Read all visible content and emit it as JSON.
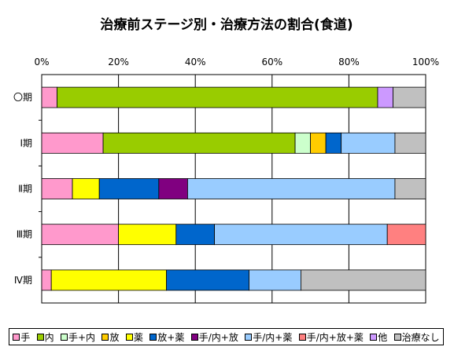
{
  "chart_data": {
    "type": "bar",
    "orientation": "horizontal",
    "stacked_percent": true,
    "title": "治療前ステージ別・治療方法の割合(食道)",
    "xlim": [
      0,
      100
    ],
    "x_ticks": [
      "0%",
      "20%",
      "40%",
      "60%",
      "80%",
      "100%"
    ],
    "grid": true,
    "legend_position": "bottom",
    "categories": [
      "〇期",
      "Ⅰ期",
      "Ⅱ期",
      "Ⅲ期",
      "Ⅳ期"
    ],
    "series": [
      {
        "name": "手",
        "color": "#FF99CC",
        "values": [
          4,
          16,
          8,
          20,
          2.5
        ]
      },
      {
        "name": "内",
        "color": "#99CC00",
        "values": [
          83.5,
          50,
          0,
          0,
          0
        ]
      },
      {
        "name": "手+内",
        "color": "#CCFFCC",
        "values": [
          0,
          4,
          0,
          0,
          0
        ]
      },
      {
        "name": "放",
        "color": "#FFCC00",
        "values": [
          0,
          4,
          0,
          0,
          0
        ]
      },
      {
        "name": "薬",
        "color": "#FFFF00",
        "values": [
          0,
          0,
          7,
          15,
          30
        ]
      },
      {
        "name": "放+薬",
        "color": "#0066CC",
        "values": [
          0,
          4,
          15.5,
          10,
          21.5
        ]
      },
      {
        "name": "手/内+放",
        "color": "#800080",
        "values": [
          0,
          0,
          7.5,
          0,
          0
        ]
      },
      {
        "name": "手/内+薬",
        "color": "#99CCFF",
        "values": [
          0,
          14,
          54,
          45,
          13.5
        ]
      },
      {
        "name": "手/内+放+薬",
        "color": "#FF8080",
        "values": [
          0,
          0,
          0,
          10,
          0
        ]
      },
      {
        "name": "他",
        "color": "#CC99FF",
        "values": [
          4,
          0,
          0,
          0,
          0
        ]
      },
      {
        "name": "治療なし",
        "color": "#C0C0C0",
        "values": [
          8.5,
          8,
          8,
          0,
          32.5
        ]
      }
    ]
  }
}
